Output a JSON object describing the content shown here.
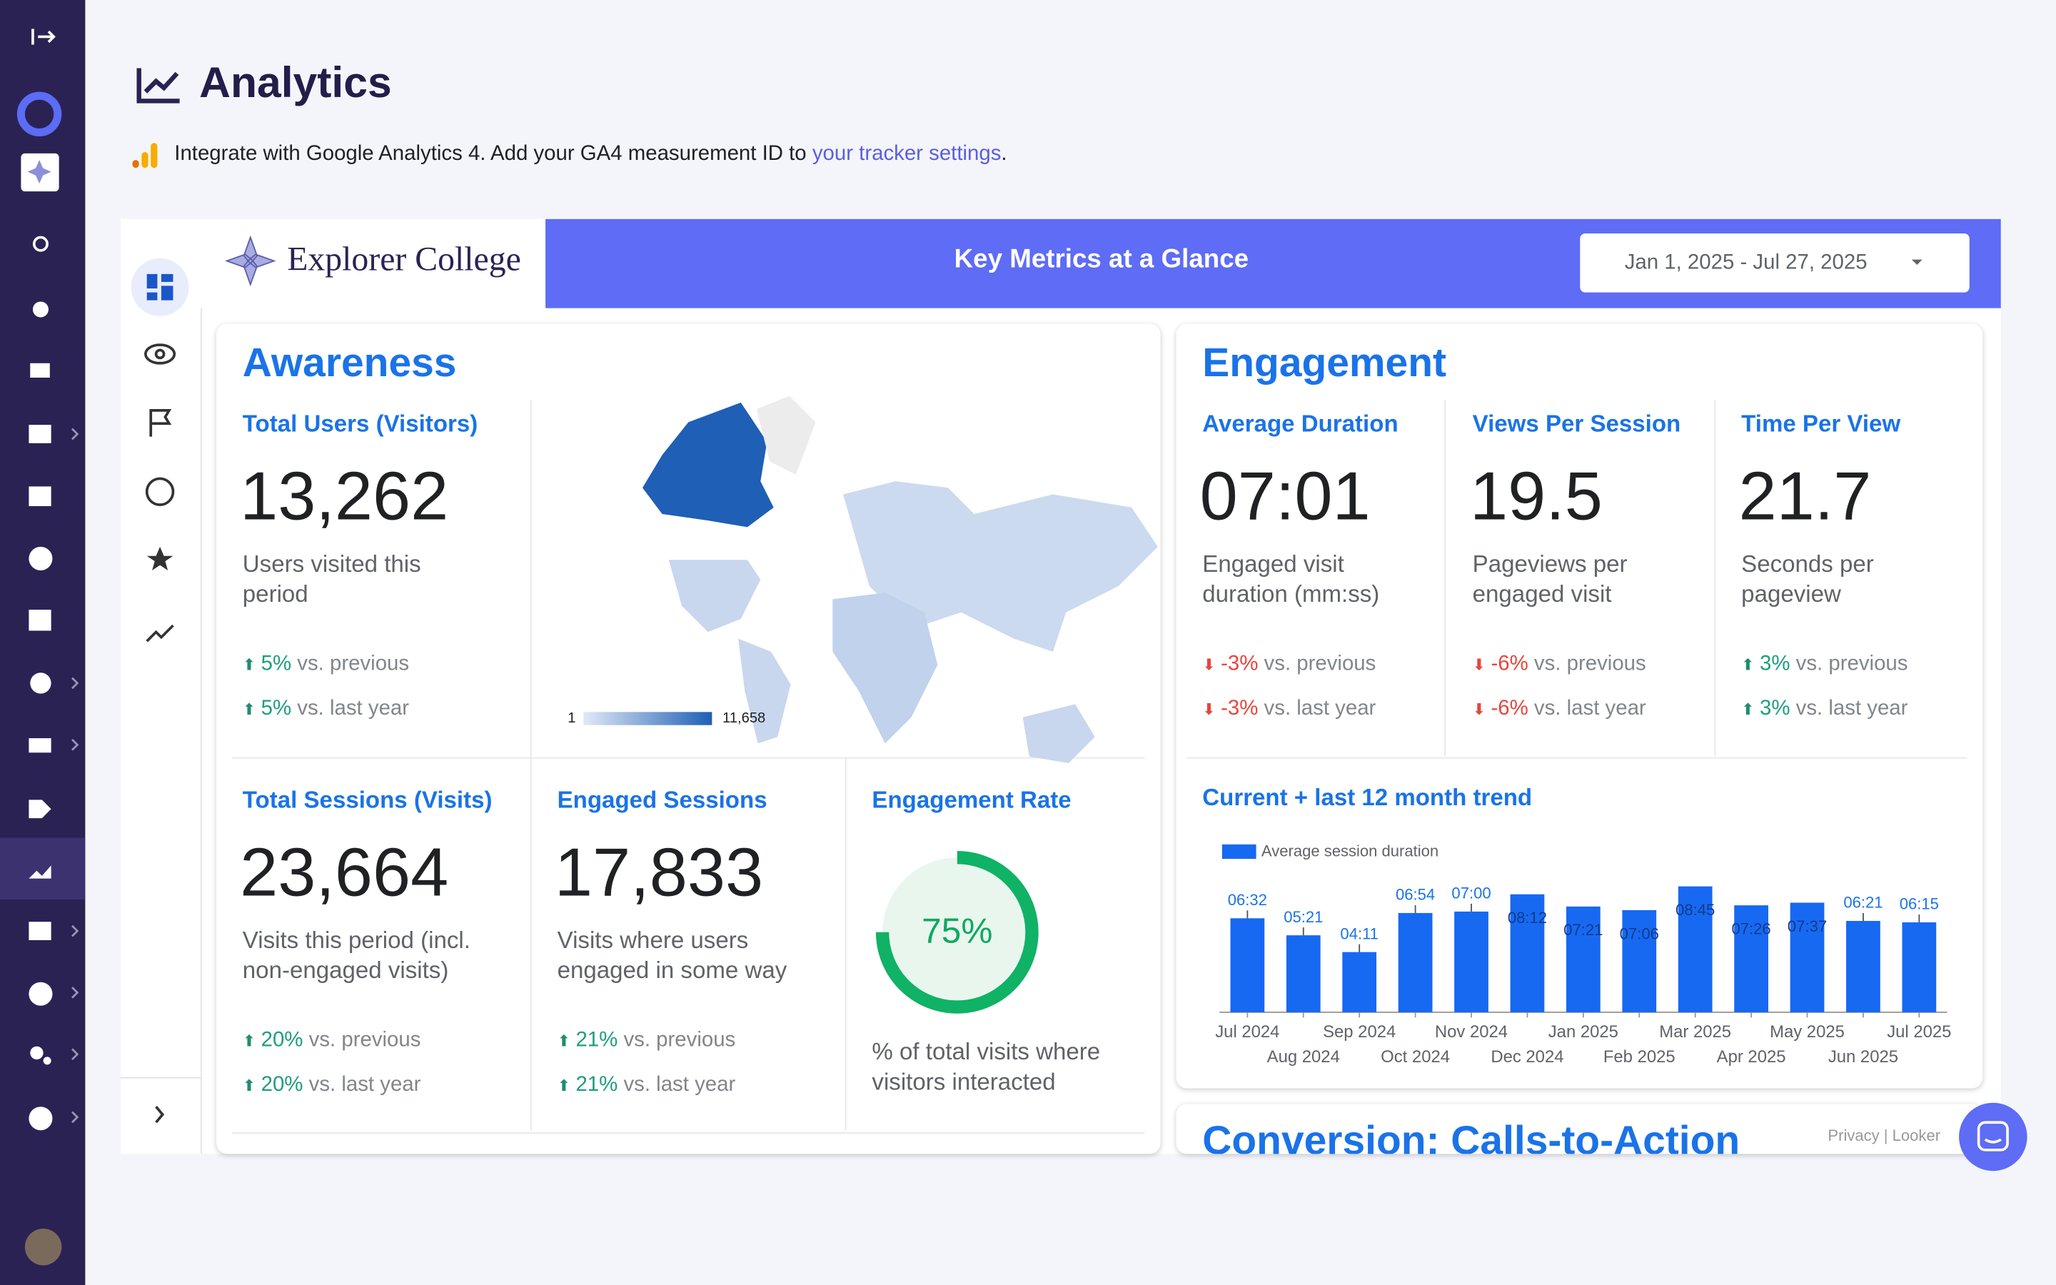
{
  "header": {
    "title": "Analytics",
    "notice": "Integrate with Google Analytics 4. Add your GA4 measurement ID to",
    "notice_link": "your tracker settings",
    "notice_end": "."
  },
  "report": {
    "brand": "Explorer College",
    "banner": "Key Metrics at a Glance",
    "date_range": "Jan 1, 2025 - Jul 27, 2025"
  },
  "awareness": {
    "title": "Awareness",
    "metrics": [
      {
        "label": "Total Users (Visitors)",
        "value": "13,262",
        "description": "Users visited this period",
        "previous": "5%",
        "previous_text": "vs. previous",
        "last_year": "5%",
        "last_year_text": "vs. last year"
      },
      {
        "label": "Total Sessions (Visits)",
        "value": "23,664",
        "description": "Visits this period (incl. non-engaged visits)",
        "previous": "20%",
        "previous_text": "vs. previous",
        "last_year": "20%",
        "last_year_text": "vs. last year"
      },
      {
        "label": "Engaged Sessions",
        "value": "17,833",
        "description": "Visits where users engaged in some way",
        "previous": "21%",
        "previous_text": "vs. previous",
        "last_year": "21%",
        "last_year_text": "vs. last year"
      }
    ],
    "map_legend": {
      "min": "1",
      "max": "11,658"
    },
    "rate": {
      "label": "Engagement Rate",
      "value": 75,
      "value_label": "75%",
      "description": "% of total visits where visitors interacted"
    }
  },
  "engagement": {
    "title": "Engagement",
    "metrics": [
      {
        "label": "Average Duration",
        "value": "07:01",
        "description": "Engaged visit duration (mm:ss)",
        "previous": "-3%",
        "previous_text": "vs. previous",
        "last_year": "-3%",
        "last_year_text": "vs. last year"
      },
      {
        "label": "Views Per Session",
        "value": "19.5",
        "description": "Pageviews per engaged visit",
        "previous": "-6%",
        "previous_text": "vs. previous",
        "last_year": "-6%",
        "last_year_text": "vs. last year"
      },
      {
        "label": "Time Per View",
        "value": "21.7",
        "description": "Seconds per pageview",
        "previous": "3%",
        "previous_text": "vs. previous",
        "last_year": "3%",
        "last_year_text": "vs. last year"
      }
    ]
  },
  "conversion": {
    "title": "Conversion: Calls-to-Action"
  },
  "footer_links": [
    "Privacy",
    "Looker"
  ],
  "chart_data": {
    "type": "bar",
    "title": "Current + last 12 month trend",
    "categories": [
      "Jul 2024",
      "Aug 2024",
      "Sep 2024",
      "Oct 2024",
      "Nov 2024",
      "Dec 2024",
      "Jan 2025",
      "Feb 2025",
      "Mar 2025",
      "Apr 2025",
      "May 2025",
      "Jun 2025",
      "Jul 2025"
    ],
    "series": [
      {
        "name": "Average session duration",
        "color": "#1769f2",
        "values": [
          392,
          321,
          251,
          414,
          420,
          492,
          441,
          426,
          525,
          446,
          457,
          381,
          375
        ],
        "value_labels": [
          "06:32",
          "05:21",
          "04:11",
          "06:54",
          "07:00",
          "08:12",
          "07:21",
          "07:06",
          "08:45",
          "07:26",
          "07:37",
          "06:21",
          "06:15"
        ]
      }
    ]
  }
}
